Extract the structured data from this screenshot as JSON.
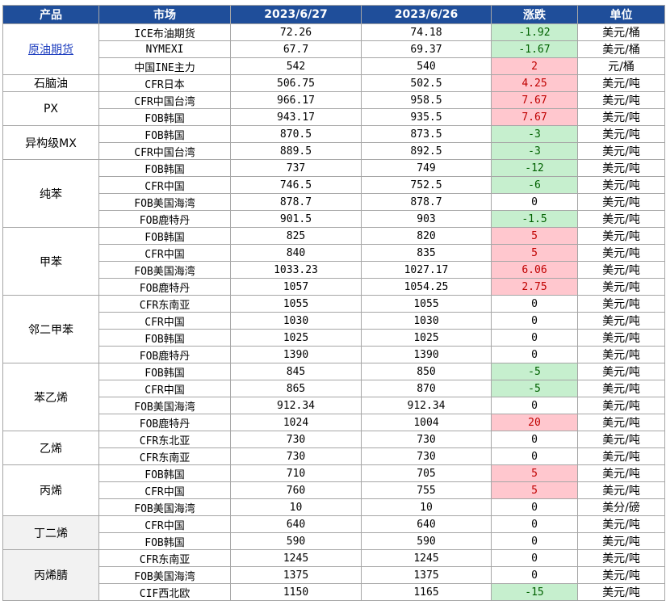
{
  "headers": [
    "产品",
    "市场",
    "2023/6/27",
    "2023/6/26",
    "涨跌",
    "单位"
  ],
  "groups": [
    {
      "product": "原油期货",
      "link": true,
      "rows": [
        {
          "market": "ICE布油期货",
          "today": "72.26",
          "prev": "74.18",
          "change": "-1.92",
          "unit": "美元/桶"
        },
        {
          "market": "NYMEXI",
          "today": "67.7",
          "prev": "69.37",
          "change": "-1.67",
          "unit": "美元/桶"
        },
        {
          "market": "中国INE主力",
          "today": "542",
          "prev": "540",
          "change": "2",
          "unit": "元/桶"
        }
      ]
    },
    {
      "product": "石脑油",
      "rows": [
        {
          "market": "CFR日本",
          "today": "506.75",
          "prev": "502.5",
          "change": "4.25",
          "unit": "美元/吨"
        }
      ]
    },
    {
      "product": "PX",
      "rows": [
        {
          "market": "CFR中国台湾",
          "today": "966.17",
          "prev": "958.5",
          "change": "7.67",
          "unit": "美元/吨"
        },
        {
          "market": "FOB韩国",
          "today": "943.17",
          "prev": "935.5",
          "change": "7.67",
          "unit": "美元/吨"
        }
      ]
    },
    {
      "product": "异构级MX",
      "rows": [
        {
          "market": "FOB韩国",
          "today": "870.5",
          "prev": "873.5",
          "change": "-3",
          "unit": "美元/吨"
        },
        {
          "market": "CFR中国台湾",
          "today": "889.5",
          "prev": "892.5",
          "change": "-3",
          "unit": "美元/吨"
        }
      ]
    },
    {
      "product": "纯苯",
      "rows": [
        {
          "market": "FOB韩国",
          "today": "737",
          "prev": "749",
          "change": "-12",
          "unit": "美元/吨"
        },
        {
          "market": "CFR中国",
          "today": "746.5",
          "prev": "752.5",
          "change": "-6",
          "unit": "美元/吨"
        },
        {
          "market": "FOB美国海湾",
          "today": "878.7",
          "prev": "878.7",
          "change": "0",
          "unit": "美元/吨"
        },
        {
          "market": "FOB鹿特丹",
          "today": "901.5",
          "prev": "903",
          "change": "-1.5",
          "unit": "美元/吨"
        }
      ]
    },
    {
      "product": "甲苯",
      "rows": [
        {
          "market": "FOB韩国",
          "today": "825",
          "prev": "820",
          "change": "5",
          "unit": "美元/吨"
        },
        {
          "market": "CFR中国",
          "today": "840",
          "prev": "835",
          "change": "5",
          "unit": "美元/吨"
        },
        {
          "market": "FOB美国海湾",
          "today": "1033.23",
          "prev": "1027.17",
          "change": "6.06",
          "unit": "美元/吨"
        },
        {
          "market": "FOB鹿特丹",
          "today": "1057",
          "prev": "1054.25",
          "change": "2.75",
          "unit": "美元/吨"
        }
      ]
    },
    {
      "product": "邻二甲苯",
      "rows": [
        {
          "market": "CFR东南亚",
          "today": "1055",
          "prev": "1055",
          "change": "0",
          "unit": "美元/吨"
        },
        {
          "market": "CFR中国",
          "today": "1030",
          "prev": "1030",
          "change": "0",
          "unit": "美元/吨"
        },
        {
          "market": "FOB韩国",
          "today": "1025",
          "prev": "1025",
          "change": "0",
          "unit": "美元/吨"
        },
        {
          "market": "FOB鹿特丹",
          "today": "1390",
          "prev": "1390",
          "change": "0",
          "unit": "美元/吨"
        }
      ]
    },
    {
      "product": "苯乙烯",
      "rows": [
        {
          "market": "FOB韩国",
          "today": "845",
          "prev": "850",
          "change": "-5",
          "unit": "美元/吨"
        },
        {
          "market": "CFR中国",
          "today": "865",
          "prev": "870",
          "change": "-5",
          "unit": "美元/吨"
        },
        {
          "market": "FOB美国海湾",
          "today": "912.34",
          "prev": "912.34",
          "change": "0",
          "unit": "美元/吨"
        },
        {
          "market": "FOB鹿特丹",
          "today": "1024",
          "prev": "1004",
          "change": "20",
          "unit": "美元/吨"
        }
      ]
    },
    {
      "product": "乙烯",
      "rows": [
        {
          "market": "CFR东北亚",
          "today": "730",
          "prev": "730",
          "change": "0",
          "unit": "美元/吨"
        },
        {
          "market": "CFR东南亚",
          "today": "730",
          "prev": "730",
          "change": "0",
          "unit": "美元/吨"
        }
      ]
    },
    {
      "product": "丙烯",
      "rows": [
        {
          "market": "FOB韩国",
          "today": "710",
          "prev": "705",
          "change": "5",
          "unit": "美元/吨"
        },
        {
          "market": "CFR中国",
          "today": "760",
          "prev": "755",
          "change": "5",
          "unit": "美元/吨"
        },
        {
          "market": "FOB美国海湾",
          "today": "10",
          "prev": "10",
          "change": "0",
          "unit": "美分/磅"
        }
      ]
    },
    {
      "product": "丁二烯",
      "shade": true,
      "rows": [
        {
          "market": "CFR中国",
          "today": "640",
          "prev": "640",
          "change": "0",
          "unit": "美元/吨"
        },
        {
          "market": "FOB韩国",
          "today": "590",
          "prev": "590",
          "change": "0",
          "unit": "美元/吨"
        }
      ]
    },
    {
      "product": "丙烯腈",
      "shade": true,
      "rows": [
        {
          "market": "CFR东南亚",
          "today": "1245",
          "prev": "1245",
          "change": "0",
          "unit": "美元/吨"
        },
        {
          "market": "FOB美国海湾",
          "today": "1375",
          "prev": "1375",
          "change": "0",
          "unit": "美元/吨"
        },
        {
          "market": "CIF西北欧",
          "today": "1150",
          "prev": "1165",
          "change": "-15",
          "unit": "美元/吨"
        }
      ]
    }
  ]
}
